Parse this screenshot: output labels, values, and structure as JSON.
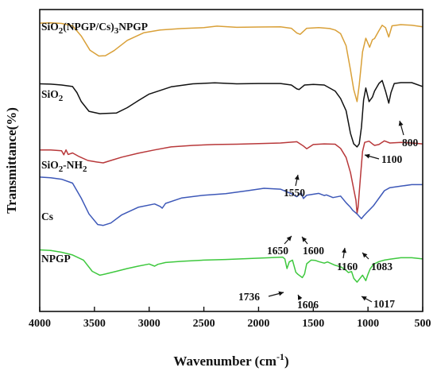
{
  "chart_data": {
    "type": "line",
    "xlabel": "Wavenumber (cm",
    "xlabel_sup": "-1",
    "xlabel_close": ")",
    "ylabel": "Transmittance(%)",
    "xlim": [
      4000,
      500
    ],
    "x_reversed": true,
    "ylim": [
      0,
      100
    ],
    "xticks": [
      "4000",
      "3500",
      "3000",
      "2500",
      "2000",
      "1500",
      "1000",
      "500"
    ],
    "xtick_values": [
      4000,
      3500,
      3000,
      2500,
      2000,
      1500,
      1000,
      500
    ],
    "grid": false,
    "series": [
      {
        "name": "SiO2(NPGP/Cs)3NPGP",
        "label_parts": [
          [
            "SiO",
            ""
          ],
          [
            "2",
            "sub"
          ],
          [
            "(NPGP/Cs)",
            ""
          ],
          [
            "3",
            "sub"
          ],
          [
            "NPGP",
            ""
          ]
        ],
        "color": "#d9a038",
        "points": [
          [
            4000,
            95.5
          ],
          [
            3900,
            95.6
          ],
          [
            3800,
            95.4
          ],
          [
            3700,
            94.6
          ],
          [
            3620,
            91.2
          ],
          [
            3540,
            86.5
          ],
          [
            3460,
            84.6
          ],
          [
            3400,
            84.7
          ],
          [
            3320,
            86.4
          ],
          [
            3200,
            89.8
          ],
          [
            3050,
            92.3
          ],
          [
            2900,
            93.2
          ],
          [
            2700,
            93.7
          ],
          [
            2500,
            94.0
          ],
          [
            2380,
            94.5
          ],
          [
            2200,
            94.1
          ],
          [
            2000,
            94.2
          ],
          [
            1800,
            94.3
          ],
          [
            1700,
            93.8
          ],
          [
            1650,
            92.2
          ],
          [
            1620,
            91.8
          ],
          [
            1560,
            93.8
          ],
          [
            1450,
            94.0
          ],
          [
            1350,
            93.7
          ],
          [
            1300,
            93.2
          ],
          [
            1250,
            92.0
          ],
          [
            1200,
            88.0
          ],
          [
            1160,
            80.0
          ],
          [
            1130,
            73.5
          ],
          [
            1100,
            69.5
          ],
          [
            1080,
            75.0
          ],
          [
            1050,
            86.0
          ],
          [
            1020,
            90.5
          ],
          [
            985,
            87.5
          ],
          [
            960,
            90.0
          ],
          [
            940,
            90.4
          ],
          [
            900,
            93.0
          ],
          [
            870,
            94.8
          ],
          [
            840,
            94.0
          ],
          [
            810,
            90.9
          ],
          [
            780,
            94.6
          ],
          [
            700,
            95.0
          ],
          [
            600,
            94.8
          ],
          [
            500,
            94.3
          ]
        ]
      },
      {
        "name": "SiO2",
        "label_parts": [
          [
            "SiO",
            ""
          ],
          [
            "2",
            "sub"
          ]
        ],
        "color": "#111111",
        "points": [
          [
            4000,
            75.4
          ],
          [
            3900,
            75.3
          ],
          [
            3800,
            75.0
          ],
          [
            3700,
            74.5
          ],
          [
            3660,
            72.5
          ],
          [
            3620,
            69.5
          ],
          [
            3550,
            66.3
          ],
          [
            3450,
            65.5
          ],
          [
            3300,
            65.7
          ],
          [
            3200,
            67.5
          ],
          [
            3100,
            69.8
          ],
          [
            3000,
            72.0
          ],
          [
            2800,
            74.4
          ],
          [
            2600,
            75.4
          ],
          [
            2400,
            75.7
          ],
          [
            2200,
            75.4
          ],
          [
            2000,
            75.5
          ],
          [
            1800,
            75.5
          ],
          [
            1700,
            75.0
          ],
          [
            1650,
            73.7
          ],
          [
            1630,
            73.5
          ],
          [
            1580,
            75.0
          ],
          [
            1500,
            75.2
          ],
          [
            1400,
            75.0
          ],
          [
            1300,
            73.0
          ],
          [
            1250,
            70.5
          ],
          [
            1200,
            66.5
          ],
          [
            1160,
            59.0
          ],
          [
            1130,
            55.5
          ],
          [
            1100,
            54.5
          ],
          [
            1080,
            55.5
          ],
          [
            1060,
            61.0
          ],
          [
            1040,
            70.0
          ],
          [
            1020,
            74.0
          ],
          [
            990,
            69.5
          ],
          [
            960,
            71.0
          ],
          [
            940,
            73.0
          ],
          [
            900,
            75.5
          ],
          [
            870,
            76.5
          ],
          [
            840,
            73.0
          ],
          [
            810,
            69.0
          ],
          [
            790,
            72.5
          ],
          [
            760,
            75.5
          ],
          [
            700,
            75.8
          ],
          [
            600,
            75.8
          ],
          [
            500,
            74.5
          ]
        ]
      },
      {
        "name": "SiO2-NH2",
        "label_parts": [
          [
            "SiO",
            ""
          ],
          [
            "2",
            "sub"
          ],
          [
            "-NH",
            ""
          ],
          [
            "2",
            "sub"
          ]
        ],
        "color": "#b8383a",
        "points": [
          [
            4000,
            53.5
          ],
          [
            3900,
            53.5
          ],
          [
            3800,
            53.2
          ],
          [
            3780,
            51.9
          ],
          [
            3760,
            53.5
          ],
          [
            3740,
            52.0
          ],
          [
            3700,
            52.5
          ],
          [
            3640,
            51.3
          ],
          [
            3560,
            50.0
          ],
          [
            3480,
            49.5
          ],
          [
            3420,
            49.2
          ],
          [
            3350,
            50.0
          ],
          [
            3250,
            51.1
          ],
          [
            3100,
            52.4
          ],
          [
            2950,
            53.5
          ],
          [
            2800,
            54.5
          ],
          [
            2600,
            55.0
          ],
          [
            2400,
            55.3
          ],
          [
            2200,
            55.4
          ],
          [
            2000,
            55.6
          ],
          [
            1800,
            55.8
          ],
          [
            1650,
            56.2
          ],
          [
            1590,
            54.8
          ],
          [
            1560,
            53.9
          ],
          [
            1500,
            55.3
          ],
          [
            1400,
            55.5
          ],
          [
            1300,
            55.4
          ],
          [
            1250,
            54.0
          ],
          [
            1200,
            51.0
          ],
          [
            1160,
            46.0
          ],
          [
            1130,
            40.5
          ],
          [
            1110,
            36.8
          ],
          [
            1100,
            32.5
          ],
          [
            1090,
            34.5
          ],
          [
            1070,
            44.0
          ],
          [
            1050,
            53.0
          ],
          [
            1030,
            56.0
          ],
          [
            990,
            56.4
          ],
          [
            960,
            55.5
          ],
          [
            940,
            55.0
          ],
          [
            900,
            55.3
          ],
          [
            850,
            56.5
          ],
          [
            800,
            55.8
          ],
          [
            700,
            56.0
          ],
          [
            600,
            55.8
          ],
          [
            500,
            55.5
          ]
        ]
      },
      {
        "name": "Cs",
        "label_parts": [
          [
            "Cs",
            ""
          ]
        ],
        "color": "#3d58b8",
        "points": [
          [
            4000,
            44.5
          ],
          [
            3900,
            44.3
          ],
          [
            3800,
            43.8
          ],
          [
            3700,
            42.5
          ],
          [
            3620,
            37.5
          ],
          [
            3550,
            32.3
          ],
          [
            3470,
            28.8
          ],
          [
            3420,
            28.5
          ],
          [
            3350,
            29.3
          ],
          [
            3250,
            32.0
          ],
          [
            3100,
            34.5
          ],
          [
            2950,
            35.6
          ],
          [
            2900,
            34.8
          ],
          [
            2880,
            34.2
          ],
          [
            2850,
            35.8
          ],
          [
            2700,
            37.6
          ],
          [
            2500,
            38.5
          ],
          [
            2300,
            39.0
          ],
          [
            2100,
            40.0
          ],
          [
            1950,
            40.8
          ],
          [
            1800,
            40.5
          ],
          [
            1700,
            39.0
          ],
          [
            1650,
            38.0
          ],
          [
            1610,
            39.3
          ],
          [
            1590,
            37.4
          ],
          [
            1560,
            38.5
          ],
          [
            1450,
            39.1
          ],
          [
            1400,
            38.4
          ],
          [
            1380,
            38.6
          ],
          [
            1320,
            37.7
          ],
          [
            1250,
            38.2
          ],
          [
            1200,
            36.0
          ],
          [
            1160,
            34.5
          ],
          [
            1140,
            33.5
          ],
          [
            1100,
            32.3
          ],
          [
            1080,
            31.5
          ],
          [
            1060,
            30.7
          ],
          [
            1040,
            31.6
          ],
          [
            1010,
            32.8
          ],
          [
            990,
            33.5
          ],
          [
            950,
            35.0
          ],
          [
            900,
            37.5
          ],
          [
            850,
            40.0
          ],
          [
            800,
            41.0
          ],
          [
            700,
            41.5
          ],
          [
            600,
            42.0
          ],
          [
            500,
            42.0
          ]
        ]
      },
      {
        "name": "NPGP",
        "label_parts": [
          [
            "NPGP",
            ""
          ]
        ],
        "color": "#3ec83e",
        "points": [
          [
            4000,
            20.4
          ],
          [
            3900,
            20.2
          ],
          [
            3800,
            19.6
          ],
          [
            3700,
            18.7
          ],
          [
            3600,
            17.0
          ],
          [
            3520,
            13.3
          ],
          [
            3450,
            12.0
          ],
          [
            3400,
            12.4
          ],
          [
            3300,
            13.3
          ],
          [
            3200,
            14.2
          ],
          [
            3100,
            15.0
          ],
          [
            3000,
            15.7
          ],
          [
            2950,
            15.0
          ],
          [
            2920,
            15.6
          ],
          [
            2850,
            16.2
          ],
          [
            2700,
            16.6
          ],
          [
            2500,
            17.0
          ],
          [
            2300,
            17.2
          ],
          [
            2100,
            17.5
          ],
          [
            1900,
            17.8
          ],
          [
            1780,
            18.0
          ],
          [
            1760,
            17.4
          ],
          [
            1740,
            14.2
          ],
          [
            1720,
            16.4
          ],
          [
            1690,
            17.0
          ],
          [
            1660,
            13.0
          ],
          [
            1640,
            12.3
          ],
          [
            1600,
            11.2
          ],
          [
            1580,
            12.4
          ],
          [
            1560,
            15.8
          ],
          [
            1520,
            17.0
          ],
          [
            1480,
            16.9
          ],
          [
            1450,
            16.5
          ],
          [
            1400,
            16.0
          ],
          [
            1370,
            16.4
          ],
          [
            1300,
            15.3
          ],
          [
            1250,
            14.8
          ],
          [
            1200,
            13.6
          ],
          [
            1180,
            12.9
          ],
          [
            1150,
            13.2
          ],
          [
            1130,
            11.0
          ],
          [
            1100,
            9.7
          ],
          [
            1080,
            10.6
          ],
          [
            1050,
            12.0
          ],
          [
            1020,
            10.2
          ],
          [
            1000,
            12.3
          ],
          [
            980,
            14.1
          ],
          [
            950,
            15.6
          ],
          [
            900,
            16.5
          ],
          [
            850,
            17.0
          ],
          [
            800,
            17.3
          ],
          [
            700,
            17.8
          ],
          [
            600,
            17.8
          ],
          [
            500,
            17.4
          ]
        ]
      }
    ],
    "annotations": [
      {
        "text": "800",
        "x": 820,
        "y": 70.5,
        "arrow_to": [
          818,
          72
        ]
      },
      {
        "text": "1100",
        "x": 1098,
        "y": 51.0,
        "arrow_to": [
          1098,
          54.5
        ]
      },
      {
        "text": "1550",
        "x": 1570,
        "y": 50.0,
        "arrow_to": [
          1561,
          53.5
        ]
      },
      {
        "text": "1650",
        "x": 1665,
        "y": 32.0,
        "arrow_to": [
          1652,
          37.5
        ]
      },
      {
        "text": "1600",
        "x": 1570,
        "y": 32.0,
        "arrow_to": [
          1595,
          36.8
        ]
      },
      {
        "text": "1160",
        "x": 1160,
        "y": 26.5,
        "arrow_to": [
          1152,
          33.2
        ]
      },
      {
        "text": "1083",
        "x": 1070,
        "y": 26.5,
        "arrow_to": [
          1078,
          30.6
        ]
      },
      {
        "text": "1736",
        "x": 1740,
        "y": 12.5,
        "arrow_to": [
          1740,
          14.2
        ]
      },
      {
        "text": "1606",
        "x": 1605,
        "y": 8.0,
        "arrow_to": [
          1605,
          10.8
        ]
      },
      {
        "text": "1017",
        "x": 1015,
        "y": 8.0,
        "arrow_to": [
          1017,
          9.8
        ]
      }
    ]
  }
}
